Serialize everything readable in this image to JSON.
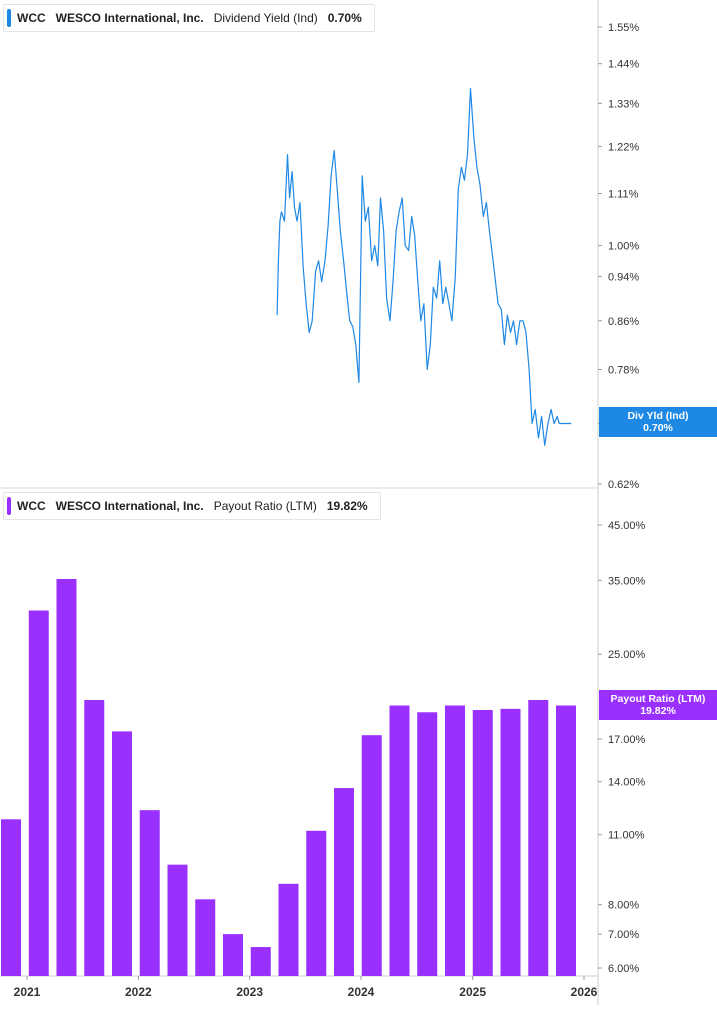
{
  "panels": [
    {
      "ticker": "WCC",
      "company": "WESCO International, Inc.",
      "metric": "Dividend Yield (Ind)",
      "value": "0.70%",
      "tag_line1": "Div Yld (Ind)",
      "tag_line2": "0.70%",
      "color": "#1e88e5"
    },
    {
      "ticker": "WCC",
      "company": "WESCO International, Inc.",
      "metric": "Payout Ratio (LTM)",
      "value": "19.82%",
      "tag_line1": "Payout Ratio (LTM)",
      "tag_line2": "19.82%",
      "color": "#9a30ff"
    }
  ],
  "chart_data": [
    {
      "type": "line",
      "title": "WCC WESCO International, Inc. Dividend Yield (Ind) 0.70%",
      "ylabel": "",
      "scale": "log",
      "ylim": [
        0.61,
        1.7
      ],
      "yticks": [
        "1.55%",
        "1.44%",
        "1.33%",
        "1.22%",
        "1.11%",
        "1.00%",
        "0.94%",
        "0.86%",
        "0.78%",
        "0.70%",
        "0.62%"
      ],
      "ytick_values": [
        1.55,
        1.44,
        1.33,
        1.22,
        1.11,
        1.0,
        0.94,
        0.86,
        0.78,
        0.7,
        0.62
      ],
      "xlim": [
        "2020-11-01",
        "2026-04-01"
      ],
      "series": [
        {
          "color": "#1e88e5",
          "x": [
            "2023-04-01",
            "2023-04-05",
            "2023-04-10",
            "2023-04-15",
            "2023-04-25",
            "2023-05-05",
            "2023-05-12",
            "2023-05-20",
            "2023-05-28",
            "2023-06-05",
            "2023-06-15",
            "2023-06-25",
            "2023-07-05",
            "2023-07-15",
            "2023-07-25",
            "2023-08-05",
            "2023-08-15",
            "2023-08-25",
            "2023-09-05",
            "2023-09-15",
            "2023-09-25",
            "2023-10-05",
            "2023-10-15",
            "2023-10-25",
            "2023-11-05",
            "2023-11-15",
            "2023-11-25",
            "2023-12-05",
            "2023-12-15",
            "2023-12-25",
            "2024-01-05",
            "2024-01-15",
            "2024-01-25",
            "2024-02-05",
            "2024-02-15",
            "2024-02-25",
            "2024-03-05",
            "2024-03-15",
            "2024-03-25",
            "2024-04-05",
            "2024-04-15",
            "2024-04-25",
            "2024-05-05",
            "2024-05-15",
            "2024-05-25",
            "2024-06-05",
            "2024-06-15",
            "2024-06-25",
            "2024-07-05",
            "2024-07-15",
            "2024-07-25",
            "2024-08-05",
            "2024-08-15",
            "2024-08-25",
            "2024-09-05",
            "2024-09-15",
            "2024-09-25",
            "2024-10-05",
            "2024-10-15",
            "2024-10-25",
            "2024-11-05",
            "2024-11-15",
            "2024-11-25",
            "2024-12-05",
            "2024-12-15",
            "2024-12-25",
            "2025-01-05",
            "2025-01-15",
            "2025-01-25",
            "2025-02-05",
            "2025-02-15",
            "2025-02-25",
            "2025-03-05",
            "2025-03-15",
            "2025-03-25",
            "2025-04-05",
            "2025-04-15",
            "2025-04-25",
            "2025-05-05",
            "2025-05-15",
            "2025-05-25",
            "2025-06-05",
            "2025-06-15",
            "2025-06-25",
            "2025-07-05",
            "2025-07-15",
            "2025-07-25",
            "2025-08-05",
            "2025-08-15",
            "2025-08-25",
            "2025-09-05",
            "2025-09-15",
            "2025-09-25",
            "2025-10-05",
            "2025-10-12",
            "2025-10-20",
            "2025-10-28",
            "2025-11-05",
            "2025-11-12",
            "2025-11-20"
          ],
          "y": [
            0.87,
            0.97,
            1.05,
            1.07,
            1.05,
            1.2,
            1.1,
            1.16,
            1.08,
            1.05,
            1.09,
            0.96,
            0.89,
            0.84,
            0.86,
            0.95,
            0.97,
            0.93,
            0.97,
            1.04,
            1.15,
            1.21,
            1.12,
            1.03,
            0.97,
            0.91,
            0.86,
            0.85,
            0.82,
            0.76,
            1.15,
            1.05,
            1.08,
            0.97,
            1.0,
            0.96,
            1.1,
            1.03,
            0.9,
            0.86,
            0.93,
            1.03,
            1.07,
            1.1,
            1.0,
            0.99,
            1.06,
            1.02,
            0.93,
            0.86,
            0.89,
            0.78,
            0.82,
            0.92,
            0.9,
            0.97,
            0.89,
            0.92,
            0.89,
            0.86,
            0.94,
            1.12,
            1.17,
            1.14,
            1.2,
            1.37,
            1.24,
            1.17,
            1.13,
            1.06,
            1.09,
            1.03,
            0.99,
            0.94,
            0.89,
            0.88,
            0.82,
            0.87,
            0.84,
            0.86,
            0.82,
            0.86,
            0.86,
            0.84,
            0.78,
            0.7,
            0.72,
            0.68,
            0.71,
            0.67,
            0.7,
            0.72,
            0.7,
            0.71,
            0.7,
            0.7,
            0.7,
            0.7,
            0.7,
            0.7
          ]
        }
      ]
    },
    {
      "type": "bar",
      "title": "WCC WESCO International, Inc. Payout Ratio (LTM) 19.82%",
      "ylabel": "",
      "scale": "log",
      "ylim": [
        5.8,
        55
      ],
      "yticks": [
        "45.00%",
        "35.00%",
        "25.00%",
        "17.00%",
        "14.00%",
        "11.00%",
        "8.00%",
        "7.00%",
        "6.00%"
      ],
      "ytick_values": [
        45,
        35,
        25,
        17,
        14,
        11,
        8,
        7,
        6
      ],
      "x_axis_labels": [
        "2021",
        "2022",
        "2023",
        "2024",
        "2025",
        "2026"
      ],
      "series": [
        {
          "color": "#9a30ff",
          "x": [
            "2020-Q4",
            "2021-Q1",
            "2021-Q2",
            "2021-Q3",
            "2021-Q4",
            "2022-Q1",
            "2022-Q2",
            "2022-Q3",
            "2022-Q4",
            "2023-Q1",
            "2023-Q2",
            "2023-Q3",
            "2023-Q4",
            "2024-Q1",
            "2024-Q2",
            "2024-Q3",
            "2024-Q4",
            "2025-Q1",
            "2025-Q2",
            "2025-Q3",
            "2025-Q4"
          ],
          "values": [
            11.8,
            30.5,
            35.2,
            20.3,
            17.6,
            12.3,
            9.6,
            8.2,
            7.0,
            6.6,
            8.8,
            11.2,
            13.6,
            17.3,
            19.8,
            19.2,
            19.8,
            19.4,
            19.5,
            20.3,
            19.8
          ]
        }
      ]
    }
  ],
  "x_axis": {
    "labels": [
      "2021",
      "2022",
      "2023",
      "2024",
      "2025",
      "2026"
    ]
  }
}
